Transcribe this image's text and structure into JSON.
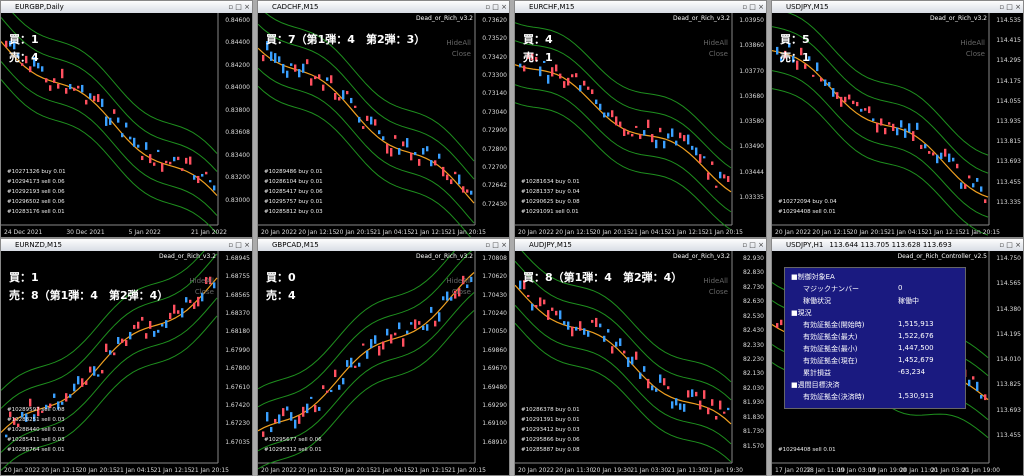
{
  "windows": [
    {
      "title": "EURGBP,Daily",
      "overlay": [
        "買：1",
        "売：4"
      ],
      "prices": [
        "0.84600",
        "0.84400",
        "0.84200",
        "0.84000",
        "0.83800",
        "0.83608",
        "0.83400",
        "0.83200",
        "0.83000"
      ],
      "times": [
        "24 Dec 2021",
        "30 Dec 2021",
        "5 Jan 2022",
        "21 Jan 2022"
      ],
      "orders": [
        "#10271326 buy 0.01",
        "#10294173 sell 0.06",
        "#10292193 sell 0.06",
        "#10296502 sell 0.06",
        "#10283176 sell 0.01"
      ]
    },
    {
      "title": "CADCHF,M15",
      "indicator": "Dead_or_Rich_v3.2",
      "overlay": [
        "買：7（第1弾：4　第2弾：3）"
      ],
      "buttons": [
        "HideAll",
        "Close"
      ],
      "prices": [
        "0.73620",
        "0.73520",
        "0.73420",
        "0.73300",
        "0.73140",
        "0.73040",
        "0.72900",
        "0.72800",
        "0.72700",
        "0.72642",
        "0.72430"
      ],
      "times": [
        "20 Jan 2022",
        "20 Jan 12:15",
        "20 Jan 20:15",
        "21 Jan 04:15",
        "21 Jan 12:15",
        "21 Jan 20:15"
      ],
      "orders": [
        "#10289486 buy 0.01",
        "#10286104 buy 0.01",
        "#10285417 buy 0.06",
        "#10295757 buy 0.01",
        "#10285812 buy 0.03"
      ]
    },
    {
      "title": "EURCHF,M15",
      "indicator": "Dead_or_Rich_v3.2",
      "overlay": [
        "買：4",
        "売：1"
      ],
      "buttons": [
        "HideAll",
        "Close"
      ],
      "prices": [
        "1.03950",
        "1.03860",
        "1.03770",
        "1.03680",
        "1.03580",
        "1.03490",
        "1.03444",
        "1.03335"
      ],
      "times": [
        "20 Jan 2022",
        "20 Jan 12:15",
        "20 Jan 20:15",
        "21 Jan 04:15",
        "21 Jan 12:15",
        "21 Jan 20:15"
      ],
      "orders": [
        "#10281634 buy 0.01",
        "#10281337 buy 0.04",
        "#10290625 buy 0.08",
        "#10291091 sell 0.01"
      ]
    },
    {
      "title": "USDJPY,M15",
      "indicator": "Dead_or_Rich_v3.2",
      "overlay": [
        "買：5",
        "売：1"
      ],
      "buttons": [
        "HideAll",
        "Close"
      ],
      "prices": [
        "114.535",
        "114.415",
        "114.295",
        "114.175",
        "114.055",
        "113.935",
        "113.815",
        "113.693",
        "113.455",
        "113.335"
      ],
      "times": [
        "20 Jan 2022",
        "20 Jan 12:15",
        "20 Jan 20:15",
        "21 Jan 04:15",
        "21 Jan 12:15",
        "21 Jan 20:15"
      ],
      "orders": [
        "#10272094 buy 0.04",
        "#10294408 sell 0.01"
      ]
    },
    {
      "title": "EURNZD,M15",
      "indicator": "Dead_or_Rich_v3.2",
      "overlay": [
        "買：1",
        "売：8（第1弾：4　第2弾：4）"
      ],
      "buttons": [
        "HideAll",
        "Close"
      ],
      "prices": [
        "1.68945",
        "1.68755",
        "1.68565",
        "1.68370",
        "1.68180",
        "1.67990",
        "1.67800",
        "1.67610",
        "1.67420",
        "1.67230",
        "1.67035"
      ],
      "times": [
        "20 Jan 2022",
        "20 Jan 12:15",
        "20 Jan 20:15",
        "21 Jan 04:15",
        "21 Jan 12:15",
        "21 Jan 20:15"
      ],
      "orders": [
        "#10289597 sell 0.08",
        "#10288251 sell 0.03",
        "#10288440 sell 0.03",
        "#10285411 sell 0.03",
        "#10288764 sell 0.01"
      ]
    },
    {
      "title": "GBPCAD,M15",
      "indicator": "Dead_or_Rich_v3.2",
      "overlay": [
        "買：0",
        "売：4"
      ],
      "buttons": [
        "HideAll",
        "Close"
      ],
      "prices": [
        "1.70808",
        "1.70620",
        "1.70430",
        "1.70240",
        "1.70050",
        "1.69860",
        "1.69670",
        "1.69480",
        "1.69290",
        "1.69100",
        "1.68910"
      ],
      "times": [
        "20 Jan 2022",
        "20 Jan 12:15",
        "20 Jan 20:15",
        "21 Jan 04:15",
        "21 Jan 12:15",
        "21 Jan 20:15"
      ],
      "orders": [
        "#10295677 sell 0.06",
        "#10295312 sell 0.01"
      ]
    },
    {
      "title": "AUDJPY,M15",
      "indicator": "Dead_or_Rich_v3.2",
      "overlay": [
        "買：8（第1弾：4　第2弾：4）"
      ],
      "buttons": [
        "HideAll",
        "Close"
      ],
      "prices": [
        "82.930",
        "82.830",
        "82.730",
        "82.630",
        "82.530",
        "82.430",
        "82.330",
        "82.230",
        "82.130",
        "82.030",
        "81.930",
        "81.830",
        "81.730",
        "81.570"
      ],
      "times": [
        "20 Jan 2022",
        "20 Jan 11:30",
        "20 Jan 19:30",
        "21 Jan 03:30",
        "21 Jan 11:30",
        "21 Jan 19:30"
      ],
      "orders": [
        "#10286378 buy 0.01",
        "#10291391 buy 0.01",
        "#10293412 buy 0.03",
        "#10295866 buy 0.06",
        "#10285887 buy 0.08"
      ]
    },
    {
      "title": "USDJPY,H1",
      "quote": "113.644 113.705 113.628 113.693",
      "indicator": "Dead_or_Rich_Controller_v2.5",
      "prices": [
        "114.750",
        "114.565",
        "114.380",
        "114.195",
        "114.010",
        "113.825",
        "113.693",
        "113.455"
      ],
      "times": [
        "17 Jan 2022",
        "18 Jan 11:00",
        "19 Jan 03:00",
        "19 Jan 19:00",
        "20 Jan 11:00",
        "21 Jan 03:00",
        "21 Jan 19:00"
      ],
      "orders": [
        "#10294408 sell 0.01"
      ],
      "info": [
        [
          "■制御対象EA",
          ""
        ],
        [
          "マジックナンバー",
          "0"
        ],
        [
          "稼働状況",
          "稼働中"
        ],
        [
          "■現況",
          ""
        ],
        [
          "有効証拠金(開始時)",
          "1,515,913"
        ],
        [
          "有効証拠金(最大)",
          "1,522,676"
        ],
        [
          "有効証拠金(最小)",
          "1,447,500"
        ],
        [
          "有効証拠金(現在)",
          "1,452,679"
        ],
        [
          "累計損益",
          "-63,234"
        ],
        [
          "■週間目標決済",
          ""
        ],
        [
          "有効証拠金(決済時)",
          "1,530,913"
        ]
      ]
    }
  ]
}
